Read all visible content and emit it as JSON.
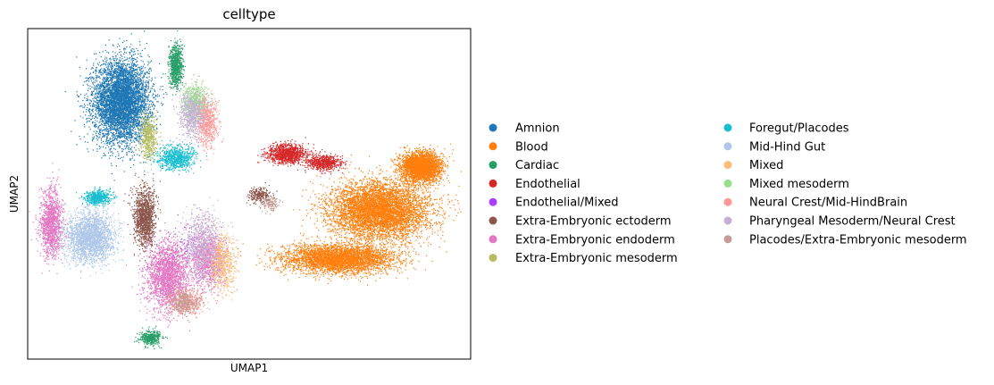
{
  "chart_data": {
    "type": "scatter",
    "title": "celltype",
    "xlabel": "UMAP1",
    "ylabel": "UMAP2",
    "grid": false,
    "ticks": "none",
    "legend_position": "right, two columns",
    "series": [
      {
        "name": "Amnion",
        "color": "#1f77b4",
        "clusters": [
          [
            -6.2,
            5.6,
            1.3,
            1.7,
            0.42
          ]
        ]
      },
      {
        "name": "Blood",
        "color": "#ff7f0e",
        "clusters": [
          [
            7.1,
            0.6,
            2.3,
            1.2,
            0.45
          ],
          [
            5.0,
            -1.6,
            2.6,
            0.6,
            0.3
          ],
          [
            9.2,
            2.6,
            0.9,
            0.6,
            0.25
          ]
        ]
      },
      {
        "name": "Cardiac",
        "color": "#279e68",
        "clusters": [
          [
            -3.4,
            7.2,
            0.3,
            0.9,
            0.06
          ],
          [
            -4.7,
            -5.2,
            0.5,
            0.3,
            0.03
          ]
        ]
      },
      {
        "name": "Endothelial",
        "color": "#d62728",
        "clusters": [
          [
            2.3,
            3.2,
            0.9,
            0.4,
            0.08
          ],
          [
            4.2,
            2.8,
            0.8,
            0.3,
            0.05
          ]
        ]
      },
      {
        "name": "Endothelial/Mixed",
        "color": "#aa40fc",
        "clusters": [
          [
            -3.0,
            -1.0,
            0.6,
            0.8,
            0.005
          ]
        ]
      },
      {
        "name": "Extra-Embryonic ectoderm",
        "color": "#8c564b",
        "clusters": [
          [
            -5.0,
            0.3,
            0.5,
            1.2,
            0.1
          ],
          [
            0.9,
            1.3,
            0.5,
            0.3,
            0.02
          ]
        ]
      },
      {
        "name": "Extra-Embryonic endoderm",
        "color": "#e377c2",
        "clusters": [
          [
            -9.8,
            0.0,
            0.5,
            1.4,
            0.1
          ],
          [
            -3.8,
            -2.4,
            1.0,
            1.4,
            0.16
          ],
          [
            -1.8,
            -1.6,
            0.8,
            1.2,
            0.08
          ]
        ]
      },
      {
        "name": "Extra-Embryonic mesoderm",
        "color": "#b5bd61",
        "clusters": [
          [
            -4.8,
            4.0,
            0.4,
            0.9,
            0.04
          ]
        ]
      },
      {
        "name": "Foregut/Placodes",
        "color": "#17becf",
        "clusters": [
          [
            -3.4,
            3.0,
            0.9,
            0.5,
            0.06
          ],
          [
            -7.4,
            1.2,
            0.6,
            0.3,
            0.04
          ]
        ]
      },
      {
        "name": "Mid-Hind Gut",
        "color": "#aec7e8",
        "clusters": [
          [
            -7.8,
            -0.6,
            1.1,
            1.0,
            0.18
          ]
        ]
      },
      {
        "name": "Mixed",
        "color": "#ffbb78",
        "clusters": [
          [
            -1.0,
            -1.8,
            0.6,
            1.1,
            0.05
          ]
        ]
      },
      {
        "name": "Mixed mesoderm",
        "color": "#98df8a",
        "clusters": [
          [
            -2.4,
            5.5,
            0.6,
            0.8,
            0.05
          ]
        ]
      },
      {
        "name": "Neural Crest/Mid-HindBrain",
        "color": "#ff9896",
        "clusters": [
          [
            -1.8,
            4.6,
            0.5,
            0.9,
            0.05
          ],
          [
            -2.8,
            -3.6,
            0.8,
            0.5,
            0.03
          ]
        ]
      },
      {
        "name": "Pharyngeal Mesoderm/Neural Crest",
        "color": "#c5b0d5",
        "clusters": [
          [
            -2.6,
            5.0,
            0.6,
            0.9,
            0.05
          ],
          [
            -2.0,
            -1.0,
            0.9,
            1.6,
            0.06
          ]
        ]
      },
      {
        "name": "Placodes/Extra-Embryonic mesoderm",
        "color": "#c49c94",
        "clusters": [
          [
            -3.0,
            -3.6,
            0.7,
            0.5,
            0.03
          ],
          [
            1.5,
            0.9,
            0.4,
            0.3,
            0.01
          ]
        ]
      }
    ],
    "xlim": [
      -11,
      11.8
    ],
    "ylim": [
      -6.2,
      8.9
    ]
  }
}
